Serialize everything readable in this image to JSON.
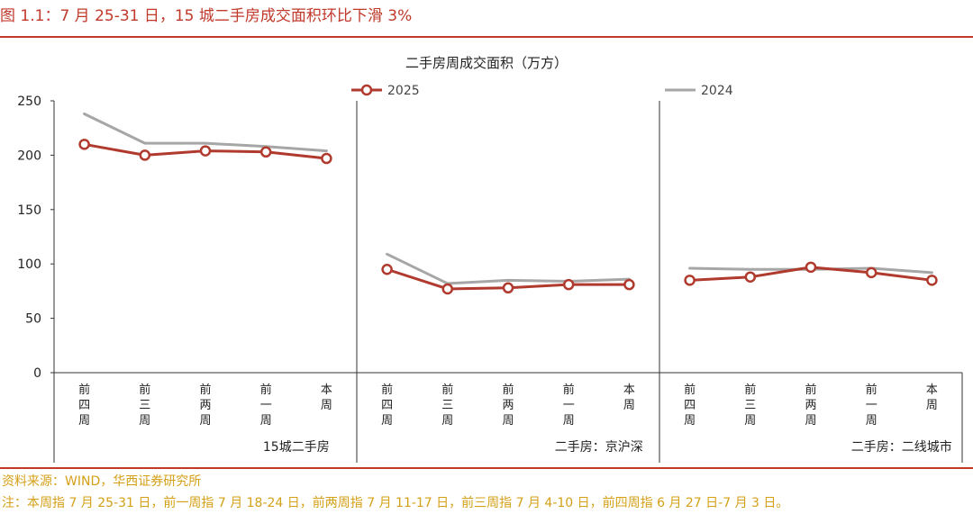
{
  "figure": {
    "title": "图 1.1：7 月 25-31 日，15 城二手房成交面积环比下滑 3%",
    "source": "资料来源：WIND，华西证券研究所",
    "note": "注：本周指 7 月 25-31 日，前一周指 7 月 18-24 日，前两周指 7 月 11-17 日，前三周指 7 月 4-10 日，前四周指 6 月 27 日-7 月 3 日。"
  },
  "colors": {
    "accent": "#c0392b",
    "series_2025": "#b03a2e",
    "series_2024": "#a6a6a6",
    "note_text": "#d4a017"
  },
  "chart_data": {
    "type": "line",
    "title": "二手房周成交面积（万方）",
    "ylim": [
      0,
      250
    ],
    "yticks": [
      0,
      50,
      100,
      150,
      200,
      250
    ],
    "grid": false,
    "legend_position": "top",
    "categories": [
      "前\n四\n周",
      "前\n三\n周",
      "前\n两\n周",
      "前\n一\n周",
      "本\n周"
    ],
    "panels": [
      {
        "label": "15城二手房",
        "series": [
          {
            "name": "2025",
            "values": [
              210,
              200,
              204,
              203,
              197
            ]
          },
          {
            "name": "2024",
            "values": [
              238,
              211,
              211,
              208,
              204
            ]
          }
        ]
      },
      {
        "label": "二手房：京沪深",
        "series": [
          {
            "name": "2025",
            "values": [
              95,
              77,
              78,
              81,
              81
            ]
          },
          {
            "name": "2024",
            "values": [
              109,
              82,
              85,
              84,
              86
            ]
          }
        ]
      },
      {
        "label": "二手房：二线城市",
        "series": [
          {
            "name": "2025",
            "values": [
              85,
              88,
              97,
              92,
              85
            ]
          },
          {
            "name": "2024",
            "values": [
              96,
              95,
              95,
              96,
              92
            ]
          }
        ]
      }
    ]
  }
}
